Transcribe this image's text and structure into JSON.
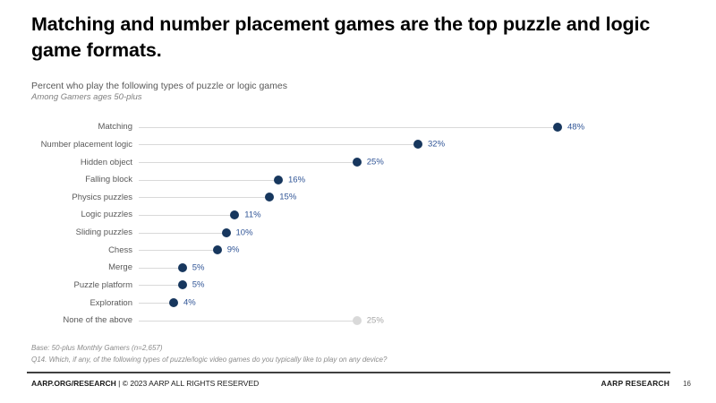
{
  "header": {
    "title": "Matching and number placement games are the top puzzle and logic game formats.",
    "title_lines": [
      "Matching and number placement games are the top puzzle and logic",
      "game formats."
    ],
    "subtitle": "Percent who play the following types of puzzle or logic games",
    "note": "Among Gamers ages 50-plus"
  },
  "chart_data": {
    "type": "bar",
    "variant": "horizontal-dot-plot",
    "title": "Percent who play the following types of puzzle or logic games",
    "subtitle": "Among Gamers ages 50-plus",
    "categories": [
      "Matching",
      "Number placement logic",
      "Hidden object",
      "Falling block",
      "Physics puzzles",
      "Logic puzzles",
      "Sliding puzzles",
      "Chess",
      "Merge",
      "Puzzle platform",
      "Exploration",
      "None of the above"
    ],
    "values": [
      48,
      32,
      25,
      16,
      15,
      11,
      10,
      9,
      5,
      5,
      4,
      25
    ],
    "value_labels": [
      "48%",
      "32%",
      "25%",
      "16%",
      "15%",
      "11%",
      "10%",
      "9%",
      "5%",
      "5%",
      "4%",
      "25%"
    ],
    "muted_categories": [
      "None of the above"
    ],
    "xlabel": "",
    "ylabel": "",
    "xlim": [
      0,
      55
    ],
    "grid": false,
    "legend_position": "none",
    "colors": {
      "dot": "#17375e",
      "value_text": "#2f5496",
      "leader_line": "#d9d9d9",
      "muted_dot": "#d9d9d9",
      "muted_value_text": "#a6a6a6",
      "category_text": "#595959"
    }
  },
  "footnotes": [
    "Base: 50-plus Monthly Gamers (n=2,657)",
    "Q14. Which, if any, of the following types of puzzle/logic video games do you typically like to play on any device?"
  ],
  "footer": {
    "left_bold": "AARP.ORG/RESEARCH",
    "left_rest": " | © 2023 AARP ALL RIGHTS RESERVED",
    "right_brand": "AARP RESEARCH",
    "page_number": "16"
  }
}
